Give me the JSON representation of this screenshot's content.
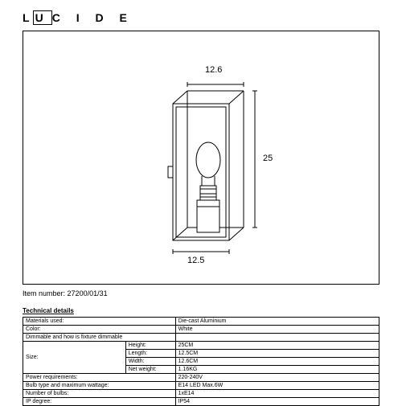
{
  "brand": "LUCIDE",
  "item_number_label": "Item number:",
  "item_number": "27200/01/31",
  "tech_title": "Technical details",
  "diagram": {
    "dim_top": "12.6",
    "dim_right": "25",
    "dim_bottom": "12.5",
    "stroke": "#000000",
    "stroke_width": 1,
    "fill": "#ffffff"
  },
  "spec": {
    "rows": [
      {
        "label": "Materials used:",
        "sub": "",
        "value": "Die-cast Aluminium"
      },
      {
        "label": "Color:",
        "sub": "",
        "value": "White"
      },
      {
        "label": "Dimmable and how is fixture dimmable",
        "sub": "",
        "value": ""
      },
      {
        "label": "Size:",
        "sub": "Height:",
        "value": "25CM"
      },
      {
        "label": "",
        "sub": "Length:",
        "value": "12.5CM"
      },
      {
        "label": "",
        "sub": "Width:",
        "value": "12.6CM"
      },
      {
        "label": "",
        "sub": "Net weight:",
        "value": "1.16KG"
      },
      {
        "label": "Power requirements:",
        "sub": "",
        "value": "220-240V"
      },
      {
        "label": "Bulb type and maximum wattage:",
        "sub": "",
        "value": "E14 LED Max.6W"
      },
      {
        "label": "Number of bulbs:",
        "sub": "",
        "value": "1xE14"
      },
      {
        "label": "IP degree:",
        "sub": "",
        "value": "IP54"
      }
    ]
  }
}
